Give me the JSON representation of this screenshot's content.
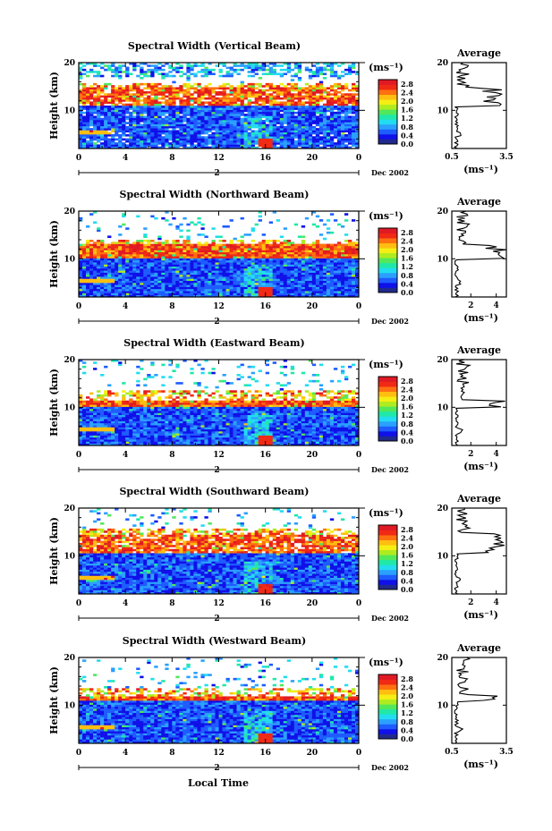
{
  "figure": {
    "xlabel_global": "Local Time",
    "date_label": "Dec 2002",
    "day_label": "2"
  },
  "chart_data": [
    {
      "type": "heatmap",
      "title": "Spectral Width (Vertical Beam)",
      "xlabel": "Local Time",
      "ylabel": "Height (km)",
      "x_ticks": [
        "0",
        "4",
        "8",
        "12",
        "16",
        "20",
        "0"
      ],
      "y_ticks": [
        "10",
        "20"
      ],
      "xlim": [
        0,
        24
      ],
      "ylim": [
        2,
        20
      ],
      "colorbar": {
        "unit": "(ms⁻¹)",
        "ticks": [
          "0.0",
          "0.4",
          "0.8",
          "1.2",
          "1.6",
          "2.0",
          "2.4",
          "2.8"
        ],
        "range": [
          0,
          3.0
        ]
      },
      "avg_profile": {
        "title": "Average",
        "xlabel": "(ms⁻¹)",
        "x_ticks": [
          "0.5",
          "3.5"
        ],
        "xlim": [
          0.5,
          3.5
        ]
      }
    },
    {
      "type": "heatmap",
      "title": "Spectral Width (Northward Beam)",
      "xlabel": "Local Time",
      "ylabel": "Height (km)",
      "x_ticks": [
        "0",
        "4",
        "8",
        "12",
        "16",
        "20",
        "0"
      ],
      "y_ticks": [
        "10",
        "20"
      ],
      "xlim": [
        0,
        24
      ],
      "ylim": [
        2,
        20
      ],
      "colorbar": {
        "unit": "(ms⁻¹)",
        "ticks": [
          "0.0",
          "0.4",
          "0.8",
          "1.2",
          "1.6",
          "2.0",
          "2.4",
          "2.8"
        ],
        "range": [
          0,
          3.0
        ]
      },
      "avg_profile": {
        "title": "Average",
        "xlabel": "(ms⁻¹)",
        "x_ticks": [
          "2",
          "4"
        ],
        "xlim": [
          0.5,
          4.8
        ]
      }
    },
    {
      "type": "heatmap",
      "title": "Spectral Width (Eastward Beam)",
      "xlabel": "Local Time",
      "ylabel": "Height (km)",
      "x_ticks": [
        "0",
        "4",
        "8",
        "12",
        "16",
        "20",
        "0"
      ],
      "y_ticks": [
        "10",
        "20"
      ],
      "xlim": [
        0,
        24
      ],
      "ylim": [
        2,
        20
      ],
      "colorbar": {
        "unit": "(ms⁻¹)",
        "ticks": [
          "0.0",
          "0.4",
          "0.8",
          "1.2",
          "1.6",
          "2.0",
          "2.4",
          "2.8"
        ],
        "range": [
          0,
          3.0
        ]
      },
      "avg_profile": {
        "title": "Average",
        "xlabel": "(ms⁻¹)",
        "x_ticks": [
          "2",
          "4"
        ],
        "xlim": [
          0.5,
          4.8
        ]
      }
    },
    {
      "type": "heatmap",
      "title": "Spectral Width (Southward Beam)",
      "xlabel": "Local Time",
      "ylabel": "Height (km)",
      "x_ticks": [
        "0",
        "4",
        "8",
        "12",
        "16",
        "20",
        "0"
      ],
      "y_ticks": [
        "10",
        "20"
      ],
      "xlim": [
        0,
        24
      ],
      "ylim": [
        2,
        20
      ],
      "colorbar": {
        "unit": "(ms⁻¹)",
        "ticks": [
          "0.0",
          "0.4",
          "0.8",
          "1.2",
          "1.6",
          "2.0",
          "2.4",
          "2.8"
        ],
        "range": [
          0,
          3.0
        ]
      },
      "avg_profile": {
        "title": "Average",
        "xlabel": "(ms⁻¹)",
        "x_ticks": [
          "2",
          "4"
        ],
        "xlim": [
          0.5,
          4.8
        ]
      }
    },
    {
      "type": "heatmap",
      "title": "Spectral Width (Westward Beam)",
      "xlabel": "Local Time",
      "ylabel": "Height (km)",
      "x_ticks": [
        "0",
        "4",
        "8",
        "12",
        "16",
        "20",
        "0"
      ],
      "y_ticks": [
        "10",
        "20"
      ],
      "xlim": [
        0,
        24
      ],
      "ylim": [
        2,
        20
      ],
      "colorbar": {
        "unit": "(ms⁻¹)",
        "ticks": [
          "0.0",
          "0.4",
          "0.8",
          "1.2",
          "1.6",
          "2.0",
          "2.4",
          "2.8"
        ],
        "range": [
          0,
          3.0
        ]
      },
      "avg_profile": {
        "title": "Average",
        "xlabel": "(ms⁻¹)",
        "x_ticks": [
          "0.5",
          "3.5"
        ],
        "xlim": [
          0.5,
          3.5
        ]
      }
    }
  ]
}
